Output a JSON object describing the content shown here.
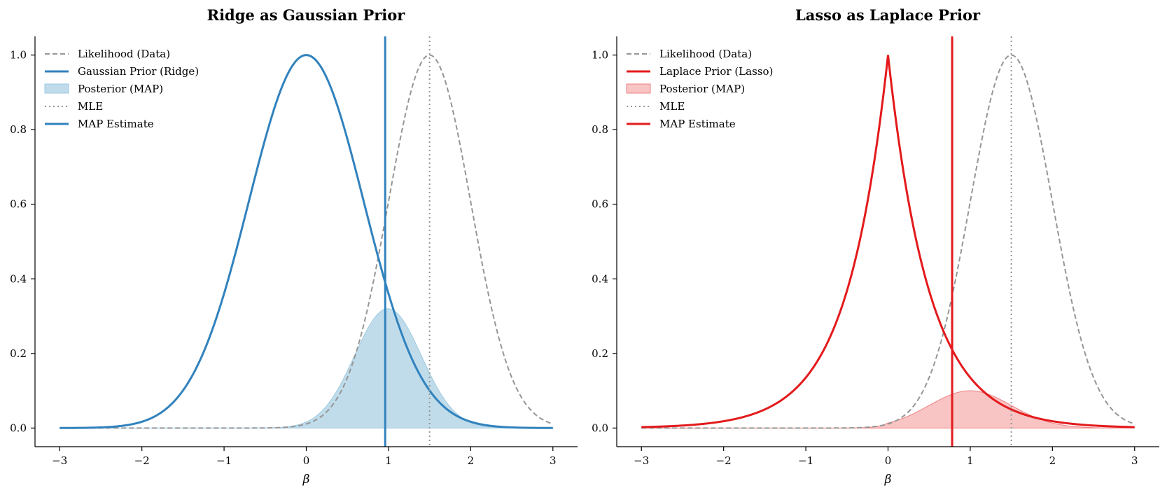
{
  "chart_data": [
    {
      "type": "line",
      "title": "Ridge as Gaussian Prior",
      "xlabel": "β",
      "ylabel": "",
      "xlim": [
        -3.3,
        3.3
      ],
      "ylim": [
        -0.05,
        1.05
      ],
      "xticks": [
        -3,
        -2,
        -1,
        0,
        1,
        2,
        3
      ],
      "yticks": [
        0.0,
        0.2,
        0.4,
        0.6,
        0.8,
        1.0
      ],
      "xtick_labels": [
        "−3",
        "−2",
        "−1",
        "0",
        "1",
        "2",
        "3"
      ],
      "ytick_labels": [
        "0.0",
        "0.2",
        "0.4",
        "0.6",
        "0.8",
        "1.0"
      ],
      "grid": false,
      "legend_position": "top-left",
      "x_range": [
        -3,
        3
      ],
      "mle": 1.5,
      "likelihood_sigma": 0.5,
      "prior": {
        "kind": "gaussian",
        "sigma": 0.7
      },
      "map_estimate": 0.96,
      "posterior_peak": 0.32,
      "legend": [
        {
          "label": "Likelihood (Data)",
          "style": "dashed",
          "color": "#969696"
        },
        {
          "label": "Gaussian Prior (Ridge)",
          "style": "solid",
          "color": "#3182bd"
        },
        {
          "label": "Posterior (MAP)",
          "style": "fill",
          "color": "#9ecae1"
        },
        {
          "label": "MLE",
          "style": "dotted",
          "color": "#969696"
        },
        {
          "label": "MAP Estimate",
          "style": "solid",
          "color": "#3182bd"
        }
      ],
      "colors": {
        "main": "#3182bd",
        "fill": "#9ecae1",
        "fill_stroke": "#9ecae1",
        "gray": "#969696"
      }
    },
    {
      "type": "line",
      "title": "Lasso as Laplace Prior",
      "xlabel": "β",
      "ylabel": "",
      "xlim": [
        -3.3,
        3.3
      ],
      "ylim": [
        -0.05,
        1.05
      ],
      "xticks": [
        -3,
        -2,
        -1,
        0,
        1,
        2,
        3
      ],
      "yticks": [
        0.0,
        0.2,
        0.4,
        0.6,
        0.8,
        1.0
      ],
      "xtick_labels": [
        "−3",
        "−2",
        "−1",
        "0",
        "1",
        "2",
        "3"
      ],
      "ytick_labels": [
        "0.0",
        "0.2",
        "0.4",
        "0.6",
        "0.8",
        "1.0"
      ],
      "grid": false,
      "legend_position": "top-left",
      "x_range": [
        -3,
        3
      ],
      "mle": 1.5,
      "likelihood_sigma": 0.5,
      "prior": {
        "kind": "laplace",
        "b": 0.5
      },
      "map_estimate": 0.78,
      "posterior_peak": 0.1,
      "legend": [
        {
          "label": "Likelihood (Data)",
          "style": "dashed",
          "color": "#969696"
        },
        {
          "label": "Laplace Prior (Lasso)",
          "style": "solid",
          "color": "#e31a1c"
        },
        {
          "label": "Posterior (MAP)",
          "style": "fill",
          "color": "#f4a4a4"
        },
        {
          "label": "MLE",
          "style": "dotted",
          "color": "#969696"
        },
        {
          "label": "MAP Estimate",
          "style": "solid",
          "color": "#e31a1c"
        }
      ],
      "colors": {
        "main": "#e31a1c",
        "fill": "#f4a4a4",
        "fill_stroke": "#f08080",
        "gray": "#969696"
      }
    }
  ]
}
